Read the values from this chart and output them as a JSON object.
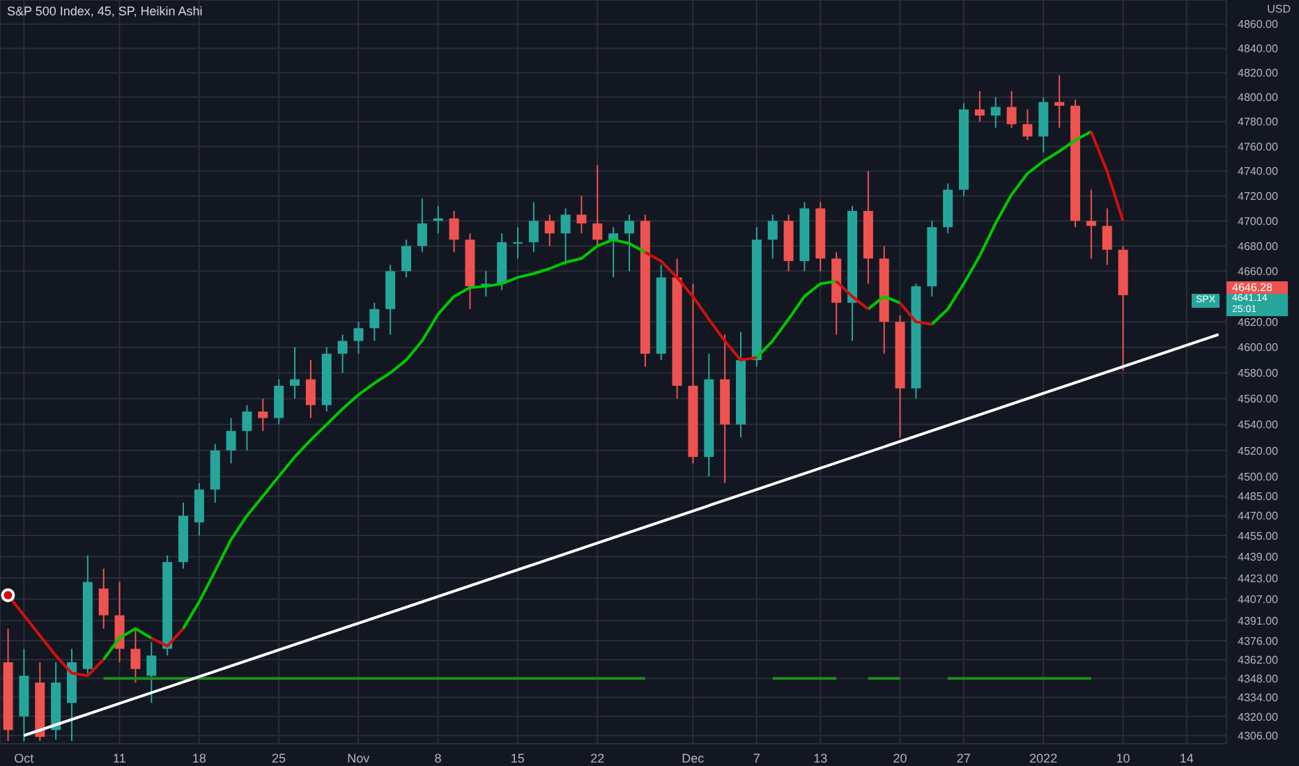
{
  "chart_data": {
    "type": "candlestick",
    "title": "S&P 500 Index, 45, SP, Heikin Ashi",
    "categories": [
      null,
      "Oct",
      null,
      null,
      null,
      null,
      null,
      "11",
      null,
      null,
      null,
      null,
      "18",
      null,
      null,
      null,
      null,
      "25",
      null,
      null,
      null,
      null,
      "Nov",
      null,
      null,
      null,
      null,
      "8",
      null,
      null,
      null,
      null,
      "15",
      null,
      null,
      null,
      null,
      "22",
      null,
      null,
      null,
      null,
      null,
      "Dec",
      null,
      null,
      null,
      "7",
      null,
      null,
      null,
      "13",
      null,
      null,
      null,
      null,
      "20",
      null,
      null,
      null,
      "27",
      null,
      null,
      null,
      null,
      "2022",
      null,
      null,
      null,
      null,
      "10",
      null,
      null,
      null,
      "14",
      null,
      null
    ],
    "ohlc": [
      [
        4360,
        4385,
        4302,
        4310
      ],
      [
        4320,
        4370,
        4302,
        4350
      ],
      [
        4345,
        4360,
        4302,
        4305
      ],
      [
        4310,
        4360,
        4303,
        4345
      ],
      [
        4330,
        4370,
        4302,
        4360
      ],
      [
        4355,
        4440,
        4350,
        4420
      ],
      [
        4415,
        4430,
        4385,
        4395
      ],
      [
        4395,
        4420,
        4360,
        4370
      ],
      [
        4370,
        4385,
        4345,
        4355
      ],
      [
        4350,
        4375,
        4330,
        4365
      ],
      [
        4370,
        4440,
        4365,
        4435
      ],
      [
        4435,
        4480,
        4430,
        4470
      ],
      [
        4465,
        4495,
        4455,
        4490
      ],
      [
        4490,
        4525,
        4480,
        4520
      ],
      [
        4520,
        4545,
        4510,
        4535
      ],
      [
        4535,
        4555,
        4520,
        4550
      ],
      [
        4550,
        4560,
        4535,
        4545
      ],
      [
        4545,
        4575,
        4540,
        4570
      ],
      [
        4570,
        4600,
        4560,
        4575
      ],
      [
        4575,
        4590,
        4545,
        4555
      ],
      [
        4555,
        4600,
        4550,
        4595
      ],
      [
        4595,
        4610,
        4580,
        4605
      ],
      [
        4605,
        4620,
        4595,
        4615
      ],
      [
        4615,
        4635,
        4605,
        4630
      ],
      [
        4630,
        4665,
        4610,
        4660
      ],
      [
        4660,
        4685,
        4655,
        4680
      ],
      [
        4680,
        4718,
        4675,
        4698
      ],
      [
        4700,
        4712,
        4690,
        4702
      ],
      [
        4702,
        4708,
        4675,
        4685
      ],
      [
        4685,
        4690,
        4630,
        4648
      ],
      [
        4648,
        4660,
        4640,
        4650
      ],
      [
        4650,
        4690,
        4645,
        4683
      ],
      [
        4683,
        4695,
        4670,
        4683
      ],
      [
        4683,
        4715,
        4675,
        4700
      ],
      [
        4700,
        4705,
        4680,
        4690
      ],
      [
        4690,
        4710,
        4665,
        4705
      ],
      [
        4705,
        4720,
        4690,
        4698
      ],
      [
        4698,
        4745,
        4680,
        4685
      ],
      [
        4685,
        4695,
        4655,
        4690
      ],
      [
        4690,
        4705,
        4660,
        4700
      ],
      [
        4700,
        4705,
        4585,
        4595
      ],
      [
        4595,
        4665,
        4590,
        4655
      ],
      [
        4655,
        4670,
        4560,
        4570
      ],
      [
        4570,
        4650,
        4510,
        4515
      ],
      [
        4515,
        4595,
        4500,
        4575
      ],
      [
        4575,
        4610,
        4495,
        4540
      ],
      [
        4540,
        4612,
        4530,
        4590
      ],
      [
        4590,
        4695,
        4585,
        4685
      ],
      [
        4685,
        4705,
        4670,
        4700
      ],
      [
        4700,
        4705,
        4660,
        4668
      ],
      [
        4668,
        4715,
        4660,
        4710
      ],
      [
        4710,
        4715,
        4660,
        4670
      ],
      [
        4670,
        4675,
        4610,
        4635
      ],
      [
        4635,
        4712,
        4605,
        4708
      ],
      [
        4708,
        4740,
        4650,
        4670
      ],
      [
        4670,
        4680,
        4595,
        4620
      ],
      [
        4620,
        4625,
        4530,
        4568
      ],
      [
        4568,
        4650,
        4560,
        4648
      ],
      [
        4648,
        4700,
        4640,
        4695
      ],
      [
        4695,
        4730,
        4690,
        4725
      ],
      [
        4725,
        4795,
        4720,
        4790
      ],
      [
        4790,
        4805,
        4780,
        4785
      ],
      [
        4785,
        4800,
        4775,
        4792
      ],
      [
        4792,
        4805,
        4775,
        4778
      ],
      [
        4778,
        4790,
        4765,
        4768
      ],
      [
        4768,
        4800,
        4755,
        4796
      ],
      [
        4796,
        4818,
        4775,
        4793
      ],
      [
        4793,
        4798,
        4695,
        4700
      ],
      [
        4700,
        4725,
        4670,
        4696
      ],
      [
        4696,
        4710,
        4665,
        4677
      ],
      [
        4677,
        4680,
        4582,
        4641
      ],
      null,
      null,
      null,
      null,
      null,
      null
    ],
    "colors": [
      "#ef5350",
      "#26a69a",
      "#ef5350",
      "#26a69a",
      "#26a69a",
      "#26a69a",
      "#ef5350",
      "#ef5350",
      "#ef5350",
      "#26a69a",
      "#26a69a",
      "#26a69a",
      "#26a69a",
      "#26a69a",
      "#26a69a",
      "#26a69a",
      "#ef5350",
      "#26a69a",
      "#26a69a",
      "#ef5350",
      "#26a69a",
      "#26a69a",
      "#26a69a",
      "#26a69a",
      "#26a69a",
      "#26a69a",
      "#26a69a",
      "#26a69a",
      "#ef5350",
      "#ef5350",
      "#26a69a",
      "#26a69a",
      "#26a69a",
      "#26a69a",
      "#ef5350",
      "#26a69a",
      "#ef5350",
      "#ef5350",
      "#26a69a",
      "#26a69a",
      "#ef5350",
      "#26a69a",
      "#ef5350",
      "#ef5350",
      "#26a69a",
      "#ef5350",
      "#26a69a",
      "#26a69a",
      "#26a69a",
      "#ef5350",
      "#26a69a",
      "#ef5350",
      "#ef5350",
      "#26a69a",
      "#ef5350",
      "#ef5350",
      "#ef5350",
      "#26a69a",
      "#26a69a",
      "#26a69a",
      "#26a69a",
      "#ef5350",
      "#26a69a",
      "#ef5350",
      "#ef5350",
      "#26a69a",
      "#ef5350",
      "#ef5350",
      "#ef5350",
      "#ef5350",
      "#ef5350",
      null,
      null,
      null,
      null,
      null,
      null
    ],
    "series": [
      {
        "type": "line",
        "color": "#00c800",
        "values": [
          null,
          null,
          null,
          null,
          null,
          null,
          4362,
          4378,
          4385,
          4378,
          null,
          4385,
          4405,
          4428,
          4452,
          4470,
          4485,
          4500,
          4515,
          4528,
          4540,
          4552,
          4563,
          4572,
          4580,
          4590,
          4605,
          4626,
          4640,
          4647,
          4648,
          4650,
          4655,
          4658,
          4662,
          4667,
          4670,
          4680,
          4685,
          4682,
          4675,
          null,
          null,
          null,
          null,
          null,
          null,
          4592,
          4605,
          4622,
          4640,
          4650,
          4652,
          null,
          4630,
          4640,
          4635,
          null,
          4618,
          4630,
          4650,
          4672,
          4698,
          4721,
          4738,
          4748,
          4756,
          4765,
          4772,
          null,
          null,
          null,
          null,
          null,
          null,
          null,
          null
        ]
      },
      {
        "type": "line",
        "color": "#d01010",
        "values": [
          4410,
          4395,
          4380,
          4365,
          4352,
          4350,
          4362,
          null,
          null,
          4378,
          4372,
          4385,
          null,
          null,
          null,
          null,
          null,
          null,
          null,
          null,
          null,
          null,
          null,
          null,
          null,
          null,
          null,
          null,
          null,
          null,
          null,
          null,
          null,
          null,
          null,
          null,
          null,
          null,
          null,
          null,
          4675,
          4668,
          4655,
          4640,
          4622,
          4605,
          4590,
          4592,
          null,
          null,
          null,
          null,
          4652,
          4640,
          4630,
          null,
          4635,
          4620,
          4618,
          null,
          null,
          null,
          null,
          null,
          null,
          null,
          null,
          null,
          4772,
          4740,
          4700,
          null,
          null,
          null,
          null,
          null,
          null
        ]
      },
      {
        "type": "line",
        "color": "#1e8c1e",
        "values": [
          null,
          null,
          null,
          null,
          null,
          null,
          4348,
          4348,
          4348,
          4348,
          4348,
          4348,
          4348,
          4348,
          4348,
          4348,
          4348,
          4348,
          4348,
          4348,
          4348,
          4348,
          4348,
          4348,
          4348,
          4348,
          4348,
          4348,
          4348,
          4348,
          4348,
          4348,
          4348,
          4348,
          4348,
          4348,
          4348,
          4348,
          4348,
          4348,
          4348,
          null,
          null,
          null,
          null,
          null,
          null,
          null,
          4348,
          4348,
          4348,
          4348,
          4348,
          null,
          4348,
          4348,
          4348,
          null,
          null,
          4348,
          4348,
          4348,
          4348,
          4348,
          4348,
          4348,
          4348,
          4348,
          4348,
          null,
          null,
          null,
          null,
          null,
          null,
          null,
          null
        ]
      },
      {
        "type": "line",
        "color": "#ffffff",
        "values": [
          null,
          4306,
          null,
          null,
          null,
          null,
          null,
          null,
          null,
          null,
          null,
          null,
          null,
          null,
          null,
          null,
          null,
          null,
          null,
          null,
          null,
          null,
          null,
          null,
          null,
          null,
          null,
          null,
          null,
          null,
          null,
          null,
          null,
          null,
          null,
          null,
          null,
          null,
          null,
          null,
          null,
          null,
          null,
          null,
          null,
          null,
          null,
          null,
          null,
          null,
          null,
          null,
          null,
          null,
          null,
          null,
          null,
          null,
          null,
          null,
          null,
          null,
          null,
          null,
          null,
          null,
          null,
          null,
          null,
          null,
          null,
          null,
          null,
          null,
          null,
          null,
          4610
        ]
      }
    ],
    "log": true,
    "ylim": [
      4300,
      4880
    ],
    "yticks": [
      {
        "value": 4306,
        "label": "4306.00"
      },
      {
        "value": 4320,
        "label": "4320.00"
      },
      {
        "value": 4334,
        "label": "4334.00"
      },
      {
        "value": 4348,
        "label": "4348.00"
      },
      {
        "value": 4362,
        "label": "4362.00"
      },
      {
        "value": 4376,
        "label": "4376.00"
      },
      {
        "value": 4391,
        "label": "4391.00"
      },
      {
        "value": 4407,
        "label": "4407.00"
      },
      {
        "value": 4423,
        "label": "4423.00"
      },
      {
        "value": 4439,
        "label": "4439.00"
      },
      {
        "value": 4455,
        "label": "4455.00"
      },
      {
        "value": 4470,
        "label": "4470.00"
      },
      {
        "value": 4485,
        "label": "4485.00"
      },
      {
        "value": 4500,
        "label": "4500.00"
      },
      {
        "value": 4520,
        "label": "4520.00"
      },
      {
        "value": 4540,
        "label": "4540.00"
      },
      {
        "value": 4560,
        "label": "4560.00"
      },
      {
        "value": 4580,
        "label": "4580.00"
      },
      {
        "value": 4600,
        "label": "4600.00"
      },
      {
        "value": 4620,
        "label": "4620.00"
      },
      {
        "value": 4660,
        "label": "4660.00"
      },
      {
        "value": 4680,
        "label": "4680.00"
      },
      {
        "value": 4700,
        "label": "4700.00"
      },
      {
        "value": 4720,
        "label": "4720.00"
      },
      {
        "value": 4740,
        "label": "4740.00"
      },
      {
        "value": 4760,
        "label": "4760.00"
      },
      {
        "value": 4780,
        "label": "4780.00"
      },
      {
        "value": 4800,
        "label": "4800.00"
      },
      {
        "value": 4820,
        "label": "4820.00"
      },
      {
        "value": 4840,
        "label": "4840.00"
      },
      {
        "value": 4860,
        "label": "4860.00"
      }
    ],
    "grid": true,
    "annotations": [
      "USD",
      "4646.28",
      "4641.14",
      "25:01",
      "SPX"
    ]
  }
}
